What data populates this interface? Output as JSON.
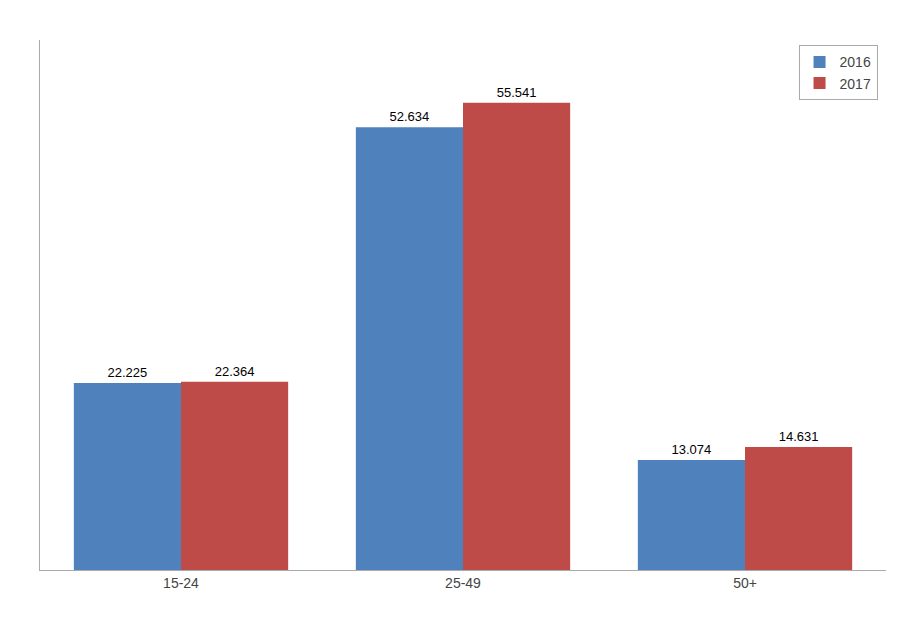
{
  "chart_data": {
    "type": "bar",
    "categories": [
      "15-24",
      "25-49",
      "50+"
    ],
    "series": [
      {
        "name": "2016",
        "color": "#4F81BD",
        "values": [
          22.225,
          52.634,
          13.074
        ]
      },
      {
        "name": "2017",
        "color": "#BE4B48",
        "values": [
          22.364,
          55.541,
          14.631
        ]
      }
    ],
    "ylim": [
      0,
      63
    ],
    "data_labels": true,
    "tick_labels": "x",
    "grid": false,
    "legend": "upper right"
  }
}
